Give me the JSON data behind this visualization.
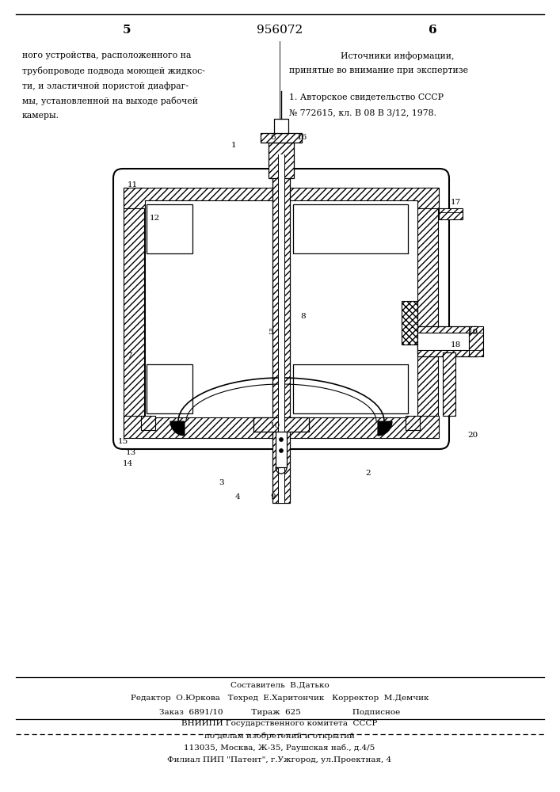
{
  "bg_color": "#ffffff",
  "page_num_left": "5",
  "page_num_center": "956072",
  "page_num_right": "6",
  "left_text": [
    "ного устройства, расположенного на",
    "трубопроводе подвода моющей жидкос-",
    "ти, и эластичной пористой диафраг-",
    "мы, установленной на выходе рабочей",
    "камеры."
  ],
  "right_header": "Источники информации,",
  "right_subheader": "принятые во внимание при экспертизе",
  "footer_line1": "Составитель  В.Датько",
  "footer_line2": "Редактор  О.Юркова   Техред  Е.Харитончик   Корректор  М.Демчик",
  "footer_line3": "Заказ  6891/10           Тираж  625                    Подписное",
  "footer_line4": "ВНИИПИ Государственного комитета  СССР",
  "footer_line5": "по делам изобретений и открытий",
  "footer_line6": "113035, Москва, Ж-35, Раушская наб., д.4/5",
  "footer_line7": "Филиал ПИП \"Патент\", г.Ужгород, ул.Проектная, 4"
}
